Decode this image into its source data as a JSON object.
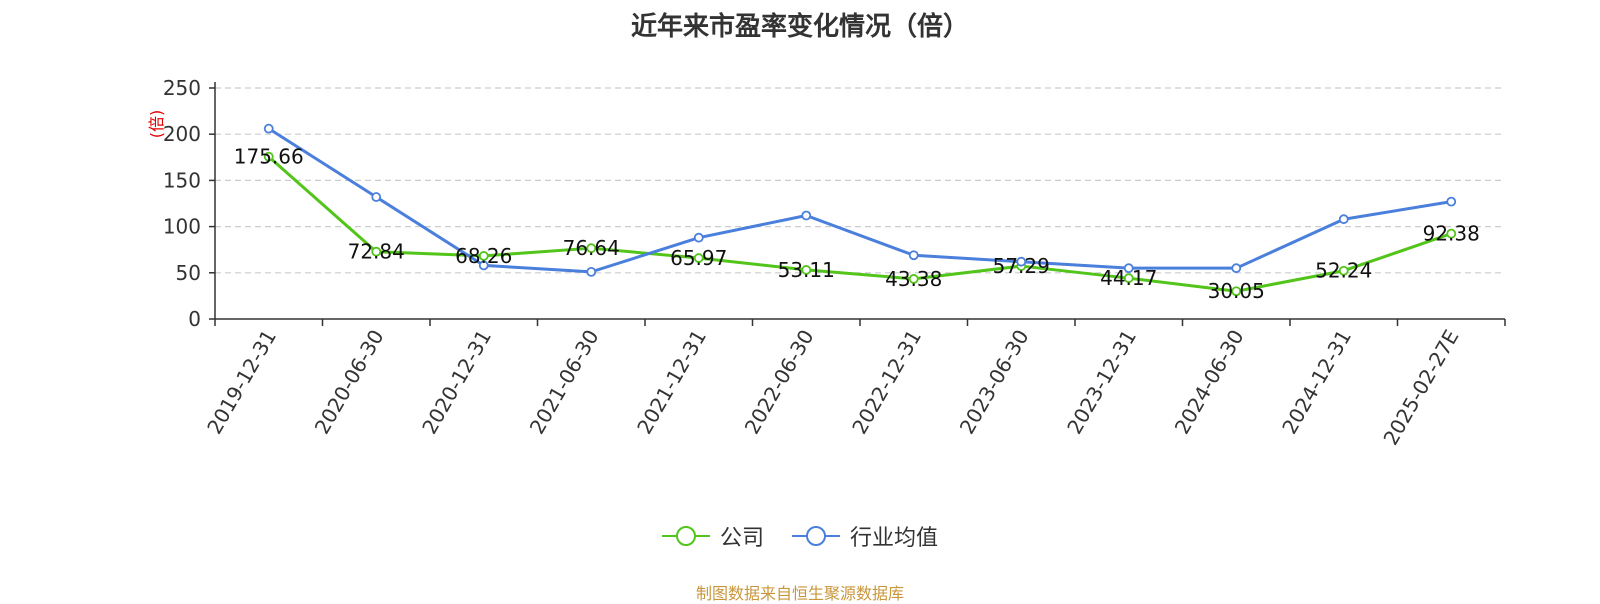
{
  "chart_data": {
    "type": "line",
    "title": "近年来市盈率变化情况（倍）",
    "ylabel": "(倍)",
    "xlabel": "",
    "ylim": [
      0,
      250
    ],
    "yticks": [
      0,
      50,
      100,
      150,
      200,
      250
    ],
    "grid": true,
    "legend_position": "bottom-center",
    "categories": [
      "2019-12-31",
      "2020-06-30",
      "2020-12-31",
      "2021-06-30",
      "2021-12-31",
      "2022-06-30",
      "2022-12-31",
      "2023-06-30",
      "2023-12-31",
      "2024-06-30",
      "2024-12-31",
      "2025-02-27E"
    ],
    "series": [
      {
        "name": "公司",
        "color": "#52c41a",
        "values": [
          175.66,
          72.84,
          68.26,
          76.64,
          65.97,
          53.11,
          43.38,
          57.29,
          44.17,
          30.05,
          52.24,
          92.38
        ],
        "labels": [
          "175.66",
          "72.84",
          "68.26",
          "76.64",
          "65.97",
          "53.11",
          "43.38",
          "57.29",
          "44.17",
          "30.05",
          "52.24",
          "92.38"
        ]
      },
      {
        "name": "行业均值",
        "color": "#4a7fdc",
        "values": [
          206,
          132,
          58,
          51,
          88,
          112,
          69,
          62,
          55,
          55,
          108,
          127
        ]
      }
    ]
  },
  "source": {
    "text": "制图数据来自恒生聚源数据库",
    "color": "#c8963c"
  }
}
